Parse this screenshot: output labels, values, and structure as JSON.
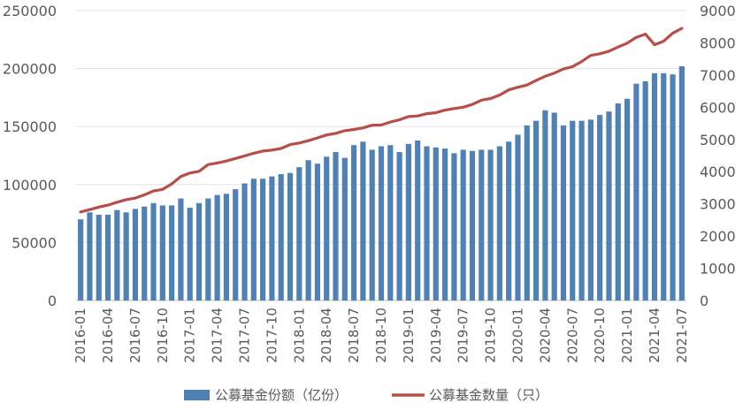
{
  "chart_data": {
    "type": "bar+line",
    "x": [
      "2016-01",
      "2016-02",
      "2016-03",
      "2016-04",
      "2016-05",
      "2016-06",
      "2016-07",
      "2016-08",
      "2016-09",
      "2016-10",
      "2016-11",
      "2016-12",
      "2017-01",
      "2017-02",
      "2017-03",
      "2017-04",
      "2017-05",
      "2017-06",
      "2017-07",
      "2017-08",
      "2017-09",
      "2017-10",
      "2017-11",
      "2017-12",
      "2018-01",
      "2018-02",
      "2018-03",
      "2018-04",
      "2018-05",
      "2018-06",
      "2018-07",
      "2018-08",
      "2018-09",
      "2018-10",
      "2018-11",
      "2018-12",
      "2019-01",
      "2019-02",
      "2019-03",
      "2019-04",
      "2019-05",
      "2019-06",
      "2019-07",
      "2019-08",
      "2019-09",
      "2019-10",
      "2019-11",
      "2019-12",
      "2020-01",
      "2020-02",
      "2020-03",
      "2020-04",
      "2020-05",
      "2020-06",
      "2020-07",
      "2020-08",
      "2020-09",
      "2020-10",
      "2020-11",
      "2020-12",
      "2021-01",
      "2021-02",
      "2021-03",
      "2021-04",
      "2021-05",
      "2021-06",
      "2021-07"
    ],
    "x_tick_labels": [
      "2016-01",
      "2016-04",
      "2016-07",
      "2016-10",
      "2017-01",
      "2017-04",
      "2017-07",
      "2017-10",
      "2018-01",
      "2018-04",
      "2018-07",
      "2018-10",
      "2019-01",
      "2019-04",
      "2019-07",
      "2019-10",
      "2020-01",
      "2020-04",
      "2020-07",
      "2020-10",
      "2021-01",
      "2021-04",
      "2021-07"
    ],
    "series": [
      {
        "name": "公募基金份额（亿份）",
        "kind": "bar",
        "axis": "left",
        "color": "#4F81B5",
        "values": [
          70000,
          76000,
          74000,
          74000,
          78000,
          76000,
          79000,
          81000,
          84000,
          82000,
          82000,
          88000,
          80000,
          84000,
          88000,
          91000,
          92000,
          96000,
          101000,
          105000,
          105000,
          107000,
          109000,
          110000,
          115000,
          121000,
          118000,
          124000,
          128000,
          123000,
          134000,
          137000,
          130000,
          133000,
          134000,
          128000,
          135000,
          138000,
          133000,
          132000,
          131000,
          127000,
          130000,
          129000,
          130000,
          130000,
          133000,
          137000,
          143000,
          151000,
          155000,
          164000,
          162000,
          151000,
          155000,
          155000,
          156000,
          160000,
          163000,
          170000,
          174000,
          187000,
          189000,
          196000,
          196000,
          195000,
          202000
        ]
      },
      {
        "name": "公募基金数量（只）",
        "kind": "line",
        "axis": "right",
        "color": "#B84E4A",
        "values": [
          2750,
          2820,
          2900,
          2960,
          3050,
          3130,
          3180,
          3280,
          3400,
          3450,
          3620,
          3850,
          3960,
          4010,
          4220,
          4270,
          4330,
          4410,
          4490,
          4570,
          4640,
          4670,
          4720,
          4840,
          4890,
          4960,
          5050,
          5140,
          5190,
          5270,
          5310,
          5360,
          5440,
          5450,
          5540,
          5610,
          5710,
          5730,
          5800,
          5830,
          5910,
          5960,
          6000,
          6090,
          6220,
          6270,
          6380,
          6540,
          6620,
          6690,
          6830,
          6960,
          7060,
          7190,
          7260,
          7420,
          7610,
          7660,
          7740,
          7870,
          7990,
          8170,
          8270,
          7940,
          8050,
          8300,
          8450
        ]
      }
    ],
    "left_axis": {
      "min": 0,
      "max": 250000,
      "ticks": [
        0,
        50000,
        100000,
        150000,
        200000,
        250000
      ],
      "tick_labels": [
        "0",
        "50000",
        "100000",
        "150000",
        "200000",
        "250000"
      ]
    },
    "right_axis": {
      "min": 0,
      "max": 9000,
      "ticks": [
        0,
        1000,
        2000,
        3000,
        4000,
        5000,
        6000,
        7000,
        8000,
        9000
      ],
      "tick_labels": [
        "0",
        "1000",
        "2000",
        "3000",
        "4000",
        "5000",
        "6000",
        "7000",
        "8000",
        "9000"
      ]
    },
    "grid": true,
    "legend_position": "bottom",
    "legend": [
      "公募基金份额（亿份）",
      "公募基金数量（只）"
    ]
  }
}
